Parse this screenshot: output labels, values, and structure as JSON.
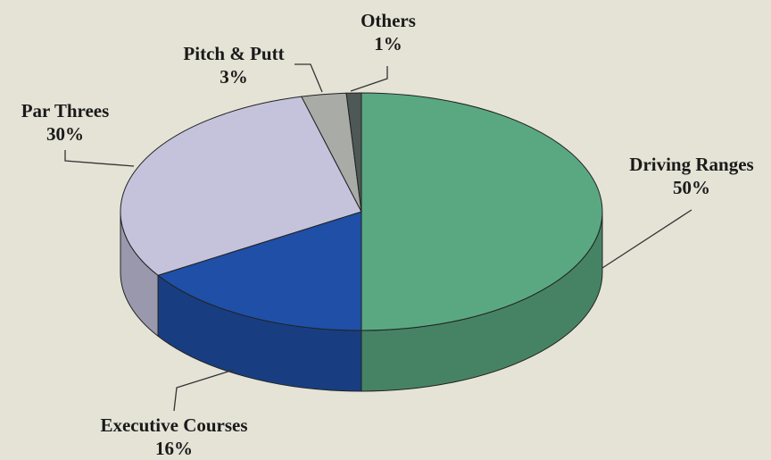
{
  "chart_data": {
    "type": "pie",
    "categories": [
      "Driving Ranges",
      "Executive Courses",
      "Par Threes",
      "Pitch & Putt",
      "Others"
    ],
    "values": [
      50,
      16,
      30,
      3,
      1
    ],
    "value_labels": [
      "50%",
      "16%",
      "30%",
      "3%",
      "1%"
    ],
    "colors": [
      "#5aa882",
      "#1f4fa6",
      "#c5c3dc",
      "#a9aba7",
      "#4e5856"
    ]
  }
}
